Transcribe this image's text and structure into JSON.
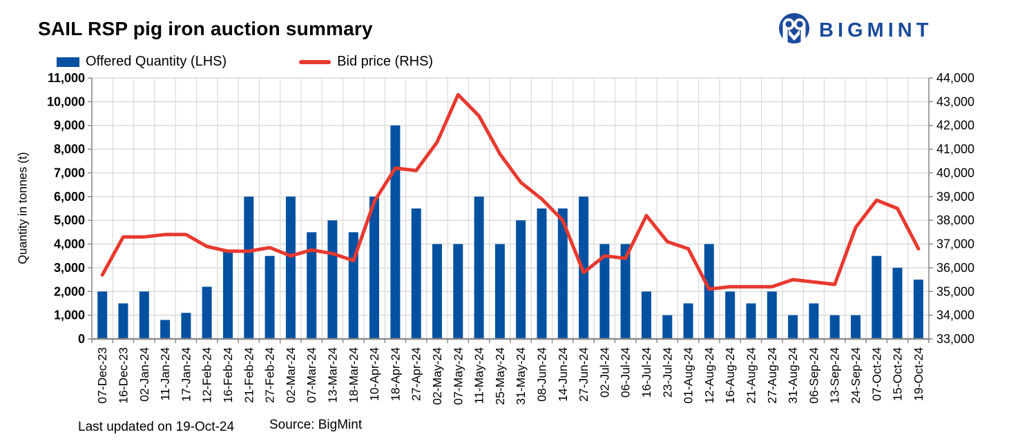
{
  "header": {
    "title": "SAIL RSP pig iron auction summary",
    "brand": "BIGMINT"
  },
  "legend": {
    "bars_label": "Offered Quantity (LHS)",
    "line_label": "Bid price (RHS)"
  },
  "footer": {
    "updated": "Last updated on 19-Oct-24",
    "source": "Source: BigMint"
  },
  "colors": {
    "bar": "#0451a1",
    "line": "#e8392f",
    "brand": "#1b4a9c",
    "grid": "#d9d9d9",
    "axis": "#8a8a8a",
    "text": "#000000"
  },
  "chart_data": {
    "type": "bar",
    "title": "SAIL RSP pig iron auction summary",
    "grid": true,
    "legend_position": "top",
    "categories": [
      "07-Dec-23",
      "16-Dec-23",
      "02-Jan-24",
      "11-Jan-24",
      "17-Jan-24",
      "12-Feb-24",
      "16-Feb-24",
      "21-Feb-24",
      "27-Feb-24",
      "02-Mar-24",
      "07-Mar-24",
      "13-Mar-24",
      "18-Mar-24",
      "10-Apr-24",
      "18-Apr-24",
      "27-Apr-24",
      "02-May-24",
      "07-May-24",
      "11-May-24",
      "25-May-24",
      "31-May-24",
      "08-Jun-24",
      "14-Jun-24",
      "27-Jun-24",
      "02-Jul-24",
      "06-Jul-24",
      "16-Jul-24",
      "23-Jul-24",
      "01-Aug-24",
      "12-Aug-24",
      "16-Aug-24",
      "21-Aug-24",
      "27-Aug-24",
      "31-Aug-24",
      "06-Sep-24",
      "13-Sep-24",
      "24-Sep-24",
      "07-Oct-24",
      "15-Oct-24",
      "19-Oct-24"
    ],
    "series": [
      {
        "name": "Offered Quantity (LHS)",
        "type": "bar",
        "axis": "left",
        "values": [
          2000,
          1500,
          2000,
          800,
          1100,
          2200,
          3700,
          6000,
          3500,
          6000,
          4500,
          5000,
          4500,
          6000,
          9000,
          5500,
          4000,
          4000,
          6000,
          4000,
          5000,
          5500,
          5500,
          6000,
          4000,
          4000,
          2000,
          1000,
          1500,
          4000,
          2000,
          1500,
          2000,
          1000,
          1500,
          1000,
          1000,
          3500,
          3000,
          2500
        ]
      },
      {
        "name": "Bid price (RHS)",
        "type": "line",
        "axis": "right",
        "values": [
          35700,
          37300,
          37300,
          37400,
          37400,
          36900,
          36700,
          36700,
          36850,
          36500,
          36750,
          36600,
          36300,
          38800,
          40200,
          40100,
          41300,
          43300,
          42400,
          40800,
          39600,
          38900,
          38000,
          35800,
          36500,
          36400,
          38200,
          37100,
          36800,
          35100,
          35200,
          35200,
          35200,
          35500,
          35400,
          35300,
          37700,
          38850,
          38500,
          36800
        ]
      }
    ],
    "y_left": {
      "title": "Quantity in tonnes (t)",
      "min": 0,
      "max": 11000,
      "step": 1000
    },
    "y_right": {
      "title": "",
      "min": 33000,
      "max": 44000,
      "step": 1000
    }
  }
}
